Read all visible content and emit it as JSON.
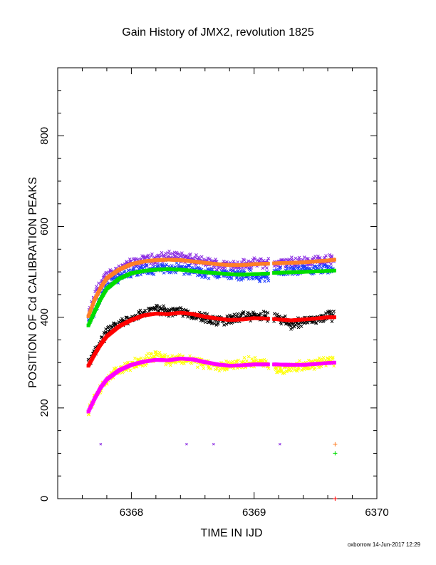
{
  "chart_data": {
    "type": "scatter",
    "title": "Gain History of JMX2, revolution 1825",
    "xlabel": "TIME IN IJD",
    "ylabel": "POSITION OF Cd CALIBRATION PEAKS",
    "xlim": [
      6367.4,
      6370.0
    ],
    "ylim": [
      0,
      950
    ],
    "x_ticks": [
      6368,
      6369,
      6370
    ],
    "x_tick_labels": [
      "6368",
      "6369",
      "6370"
    ],
    "y_ticks": [
      0,
      200,
      400,
      600,
      800
    ],
    "y_tick_labels": [
      "0",
      "200",
      "400",
      "600",
      "800"
    ],
    "grid": false,
    "legend": "none",
    "gap": [
      6369.12,
      6369.16
    ],
    "series": [
      {
        "color": "#8a2be2",
        "marker": "x",
        "role": "raw",
        "points": [
          [
            6367.65,
            402
          ],
          [
            6367.72,
            462
          ],
          [
            6367.8,
            492
          ],
          [
            6367.9,
            508
          ],
          [
            6368.0,
            518
          ],
          [
            6368.1,
            525
          ],
          [
            6368.25,
            532
          ],
          [
            6368.35,
            536
          ],
          [
            6368.45,
            530
          ],
          [
            6368.55,
            524
          ],
          [
            6368.65,
            519
          ],
          [
            6368.75,
            515
          ],
          [
            6368.85,
            516
          ],
          [
            6368.95,
            518
          ],
          [
            6369.05,
            519
          ],
          [
            6369.2,
            519
          ],
          [
            6369.3,
            521
          ],
          [
            6369.4,
            522
          ],
          [
            6369.5,
            525
          ],
          [
            6369.6,
            528
          ],
          [
            6369.65,
            527
          ]
        ]
      },
      {
        "color": "#1e3cff",
        "marker": "x",
        "role": "raw",
        "points": [
          [
            6367.65,
            385
          ],
          [
            6367.72,
            425
          ],
          [
            6367.8,
            470
          ],
          [
            6367.9,
            490
          ],
          [
            6368.0,
            500
          ],
          [
            6368.1,
            503
          ],
          [
            6368.25,
            507
          ],
          [
            6368.35,
            509
          ],
          [
            6368.45,
            505
          ],
          [
            6368.55,
            500
          ],
          [
            6368.65,
            497
          ],
          [
            6368.75,
            495
          ],
          [
            6368.85,
            494
          ],
          [
            6368.95,
            495
          ],
          [
            6369.05,
            485
          ],
          [
            6369.2,
            500
          ],
          [
            6369.3,
            502
          ],
          [
            6369.4,
            503
          ],
          [
            6369.5,
            503
          ],
          [
            6369.6,
            505
          ],
          [
            6369.65,
            505
          ]
        ]
      },
      {
        "color": "#ff7f27",
        "marker": "dot",
        "role": "smoothed",
        "points": [
          [
            6367.65,
            402
          ],
          [
            6367.7,
            438
          ],
          [
            6367.75,
            465
          ],
          [
            6367.8,
            486
          ],
          [
            6367.9,
            505
          ],
          [
            6368.0,
            517
          ],
          [
            6368.1,
            523
          ],
          [
            6368.2,
            526
          ],
          [
            6368.3,
            527
          ],
          [
            6368.4,
            526
          ],
          [
            6368.5,
            523
          ],
          [
            6368.6,
            520
          ],
          [
            6368.7,
            517
          ],
          [
            6368.8,
            515
          ],
          [
            6368.9,
            515
          ],
          [
            6369.0,
            517
          ],
          [
            6369.1,
            518
          ],
          [
            6369.17,
            519
          ],
          [
            6369.3,
            520
          ],
          [
            6369.4,
            521
          ],
          [
            6369.5,
            523
          ],
          [
            6369.6,
            525
          ],
          [
            6369.66,
            527
          ]
        ]
      },
      {
        "color": "#00dd00",
        "marker": "dot",
        "role": "smoothed",
        "points": [
          [
            6367.65,
            382
          ],
          [
            6367.7,
            412
          ],
          [
            6367.75,
            440
          ],
          [
            6367.8,
            463
          ],
          [
            6367.9,
            485
          ],
          [
            6368.0,
            497
          ],
          [
            6368.1,
            502
          ],
          [
            6368.2,
            505
          ],
          [
            6368.3,
            506
          ],
          [
            6368.4,
            505
          ],
          [
            6368.5,
            502
          ],
          [
            6368.6,
            499
          ],
          [
            6368.7,
            497
          ],
          [
            6368.8,
            495
          ],
          [
            6368.9,
            494
          ],
          [
            6369.0,
            495
          ],
          [
            6369.1,
            496
          ],
          [
            6369.17,
            498
          ],
          [
            6369.3,
            499
          ],
          [
            6369.4,
            500
          ],
          [
            6369.5,
            501
          ],
          [
            6369.6,
            502
          ],
          [
            6369.66,
            503
          ]
        ]
      },
      {
        "color": "#000000",
        "marker": "x",
        "role": "raw",
        "points": [
          [
            6367.65,
            295
          ],
          [
            6367.72,
            335
          ],
          [
            6367.8,
            365
          ],
          [
            6367.9,
            385
          ],
          [
            6368.0,
            398
          ],
          [
            6368.1,
            408
          ],
          [
            6368.2,
            418
          ],
          [
            6368.3,
            412
          ],
          [
            6368.4,
            415
          ],
          [
            6368.5,
            405
          ],
          [
            6368.6,
            398
          ],
          [
            6368.7,
            392
          ],
          [
            6368.8,
            395
          ],
          [
            6368.9,
            400
          ],
          [
            6369.0,
            403
          ],
          [
            6369.05,
            402
          ],
          [
            6369.2,
            398
          ],
          [
            6369.3,
            385
          ],
          [
            6369.4,
            392
          ],
          [
            6369.5,
            395
          ],
          [
            6369.6,
            405
          ],
          [
            6369.65,
            402
          ]
        ]
      },
      {
        "color": "#ff0000",
        "marker": "dot",
        "role": "smoothed",
        "points": [
          [
            6367.65,
            293
          ],
          [
            6367.7,
            318
          ],
          [
            6367.75,
            340
          ],
          [
            6367.8,
            358
          ],
          [
            6367.9,
            380
          ],
          [
            6368.0,
            394
          ],
          [
            6368.1,
            404
          ],
          [
            6368.2,
            408
          ],
          [
            6368.3,
            407
          ],
          [
            6368.4,
            410
          ],
          [
            6368.5,
            407
          ],
          [
            6368.6,
            401
          ],
          [
            6368.7,
            397
          ],
          [
            6368.8,
            394
          ],
          [
            6368.9,
            395
          ],
          [
            6369.0,
            398
          ],
          [
            6369.1,
            397
          ],
          [
            6369.17,
            396
          ],
          [
            6369.3,
            393
          ],
          [
            6369.4,
            395
          ],
          [
            6369.5,
            397
          ],
          [
            6369.6,
            400
          ],
          [
            6369.66,
            400
          ]
        ]
      },
      {
        "color": "#ffff00",
        "marker": "x",
        "role": "raw",
        "points": [
          [
            6367.65,
            195
          ],
          [
            6367.72,
            230
          ],
          [
            6367.8,
            262
          ],
          [
            6367.9,
            285
          ],
          [
            6368.0,
            295
          ],
          [
            6368.1,
            302
          ],
          [
            6368.2,
            318
          ],
          [
            6368.3,
            305
          ],
          [
            6368.4,
            308
          ],
          [
            6368.5,
            305
          ],
          [
            6368.6,
            297
          ],
          [
            6368.7,
            290
          ],
          [
            6368.8,
            295
          ],
          [
            6368.9,
            298
          ],
          [
            6369.0,
            303
          ],
          [
            6369.05,
            300
          ],
          [
            6369.2,
            285
          ],
          [
            6369.3,
            290
          ],
          [
            6369.4,
            293
          ],
          [
            6369.5,
            297
          ],
          [
            6369.6,
            305
          ],
          [
            6369.65,
            302
          ]
        ]
      },
      {
        "color": "#ff00ff",
        "marker": "dot",
        "role": "smoothed",
        "points": [
          [
            6367.65,
            192
          ],
          [
            6367.7,
            220
          ],
          [
            6367.75,
            245
          ],
          [
            6367.8,
            263
          ],
          [
            6367.9,
            283
          ],
          [
            6368.0,
            295
          ],
          [
            6368.1,
            302
          ],
          [
            6368.2,
            306
          ],
          [
            6368.3,
            305
          ],
          [
            6368.4,
            309
          ],
          [
            6368.5,
            307
          ],
          [
            6368.6,
            301
          ],
          [
            6368.7,
            296
          ],
          [
            6368.8,
            293
          ],
          [
            6368.9,
            294
          ],
          [
            6369.0,
            296
          ],
          [
            6369.1,
            296
          ],
          [
            6369.17,
            296
          ],
          [
            6369.3,
            295
          ],
          [
            6369.4,
            295
          ],
          [
            6369.5,
            297
          ],
          [
            6369.6,
            299
          ],
          [
            6369.66,
            300
          ]
        ]
      },
      {
        "color": "#8a2be2",
        "marker": "x",
        "role": "reference",
        "points": [
          [
            6367.75,
            120
          ],
          [
            6368.45,
            120
          ],
          [
            6368.67,
            120
          ],
          [
            6369.21,
            120
          ]
        ]
      },
      {
        "color": "#ff7f27",
        "marker": "+",
        "role": "reference",
        "points": [
          [
            6369.66,
            120
          ]
        ]
      },
      {
        "color": "#00dd00",
        "marker": "+",
        "role": "reference",
        "points": [
          [
            6369.66,
            100
          ]
        ]
      },
      {
        "color": "#ff0000",
        "marker": "+",
        "role": "reference",
        "points": [
          [
            6369.66,
            0
          ]
        ]
      }
    ]
  },
  "footer": {
    "credit": "oxborrow 14-Jun-2017 12:29"
  }
}
